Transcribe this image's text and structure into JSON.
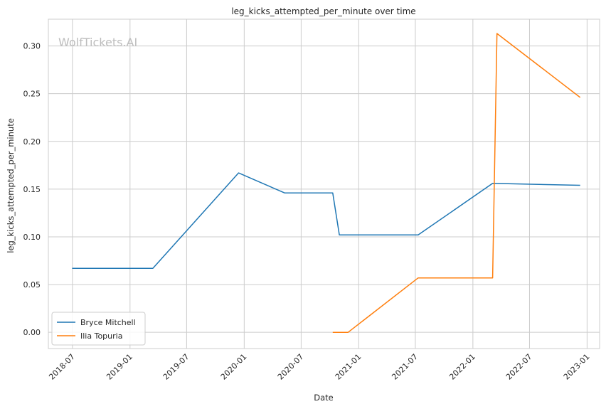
{
  "watermark": "WolfTickets.AI",
  "colors": {
    "background": "#ffffff",
    "grid": "#cccccc",
    "axes": "#cccccc",
    "text": "#262626",
    "watermark": "#bdbdbd",
    "series": [
      "#1f77b4",
      "#ff7f0e"
    ]
  },
  "chart_data": {
    "type": "line",
    "title": "leg_kicks_attempted_per_minute over time",
    "xlabel": "Date",
    "ylabel": "leg_kicks_attempted_per_minute",
    "x_scale": "date",
    "xlim": [
      "2018-04-15",
      "2023-02-10"
    ],
    "ylim": [
      -0.017,
      0.328
    ],
    "x_ticks": [
      "2018-07",
      "2019-01",
      "2019-07",
      "2020-01",
      "2020-07",
      "2021-01",
      "2021-07",
      "2022-01",
      "2022-07",
      "2023-01"
    ],
    "y_ticks": [
      "0.00",
      "0.05",
      "0.10",
      "0.15",
      "0.20",
      "0.25",
      "0.30"
    ],
    "grid": true,
    "legend_position": "bottom-left",
    "series": [
      {
        "name": "Bryce Mitchell",
        "points": [
          {
            "x": "2018-06-30",
            "y": 0.067
          },
          {
            "x": "2019-03-15",
            "y": 0.067
          },
          {
            "x": "2019-12-14",
            "y": 0.167
          },
          {
            "x": "2020-05-09",
            "y": 0.146
          },
          {
            "x": "2020-10-10",
            "y": 0.146
          },
          {
            "x": "2020-10-31",
            "y": 0.102
          },
          {
            "x": "2021-07-10",
            "y": 0.102
          },
          {
            "x": "2022-03-05",
            "y": 0.156
          },
          {
            "x": "2022-12-10",
            "y": 0.154
          }
        ]
      },
      {
        "name": "Ilia Topuria",
        "points": [
          {
            "x": "2020-10-10",
            "y": 0.0
          },
          {
            "x": "2020-11-28",
            "y": 0.0
          },
          {
            "x": "2021-07-10",
            "y": 0.057
          },
          {
            "x": "2022-03-05",
            "y": 0.057
          },
          {
            "x": "2022-03-19",
            "y": 0.313
          },
          {
            "x": "2022-12-10",
            "y": 0.246
          }
        ]
      }
    ]
  }
}
